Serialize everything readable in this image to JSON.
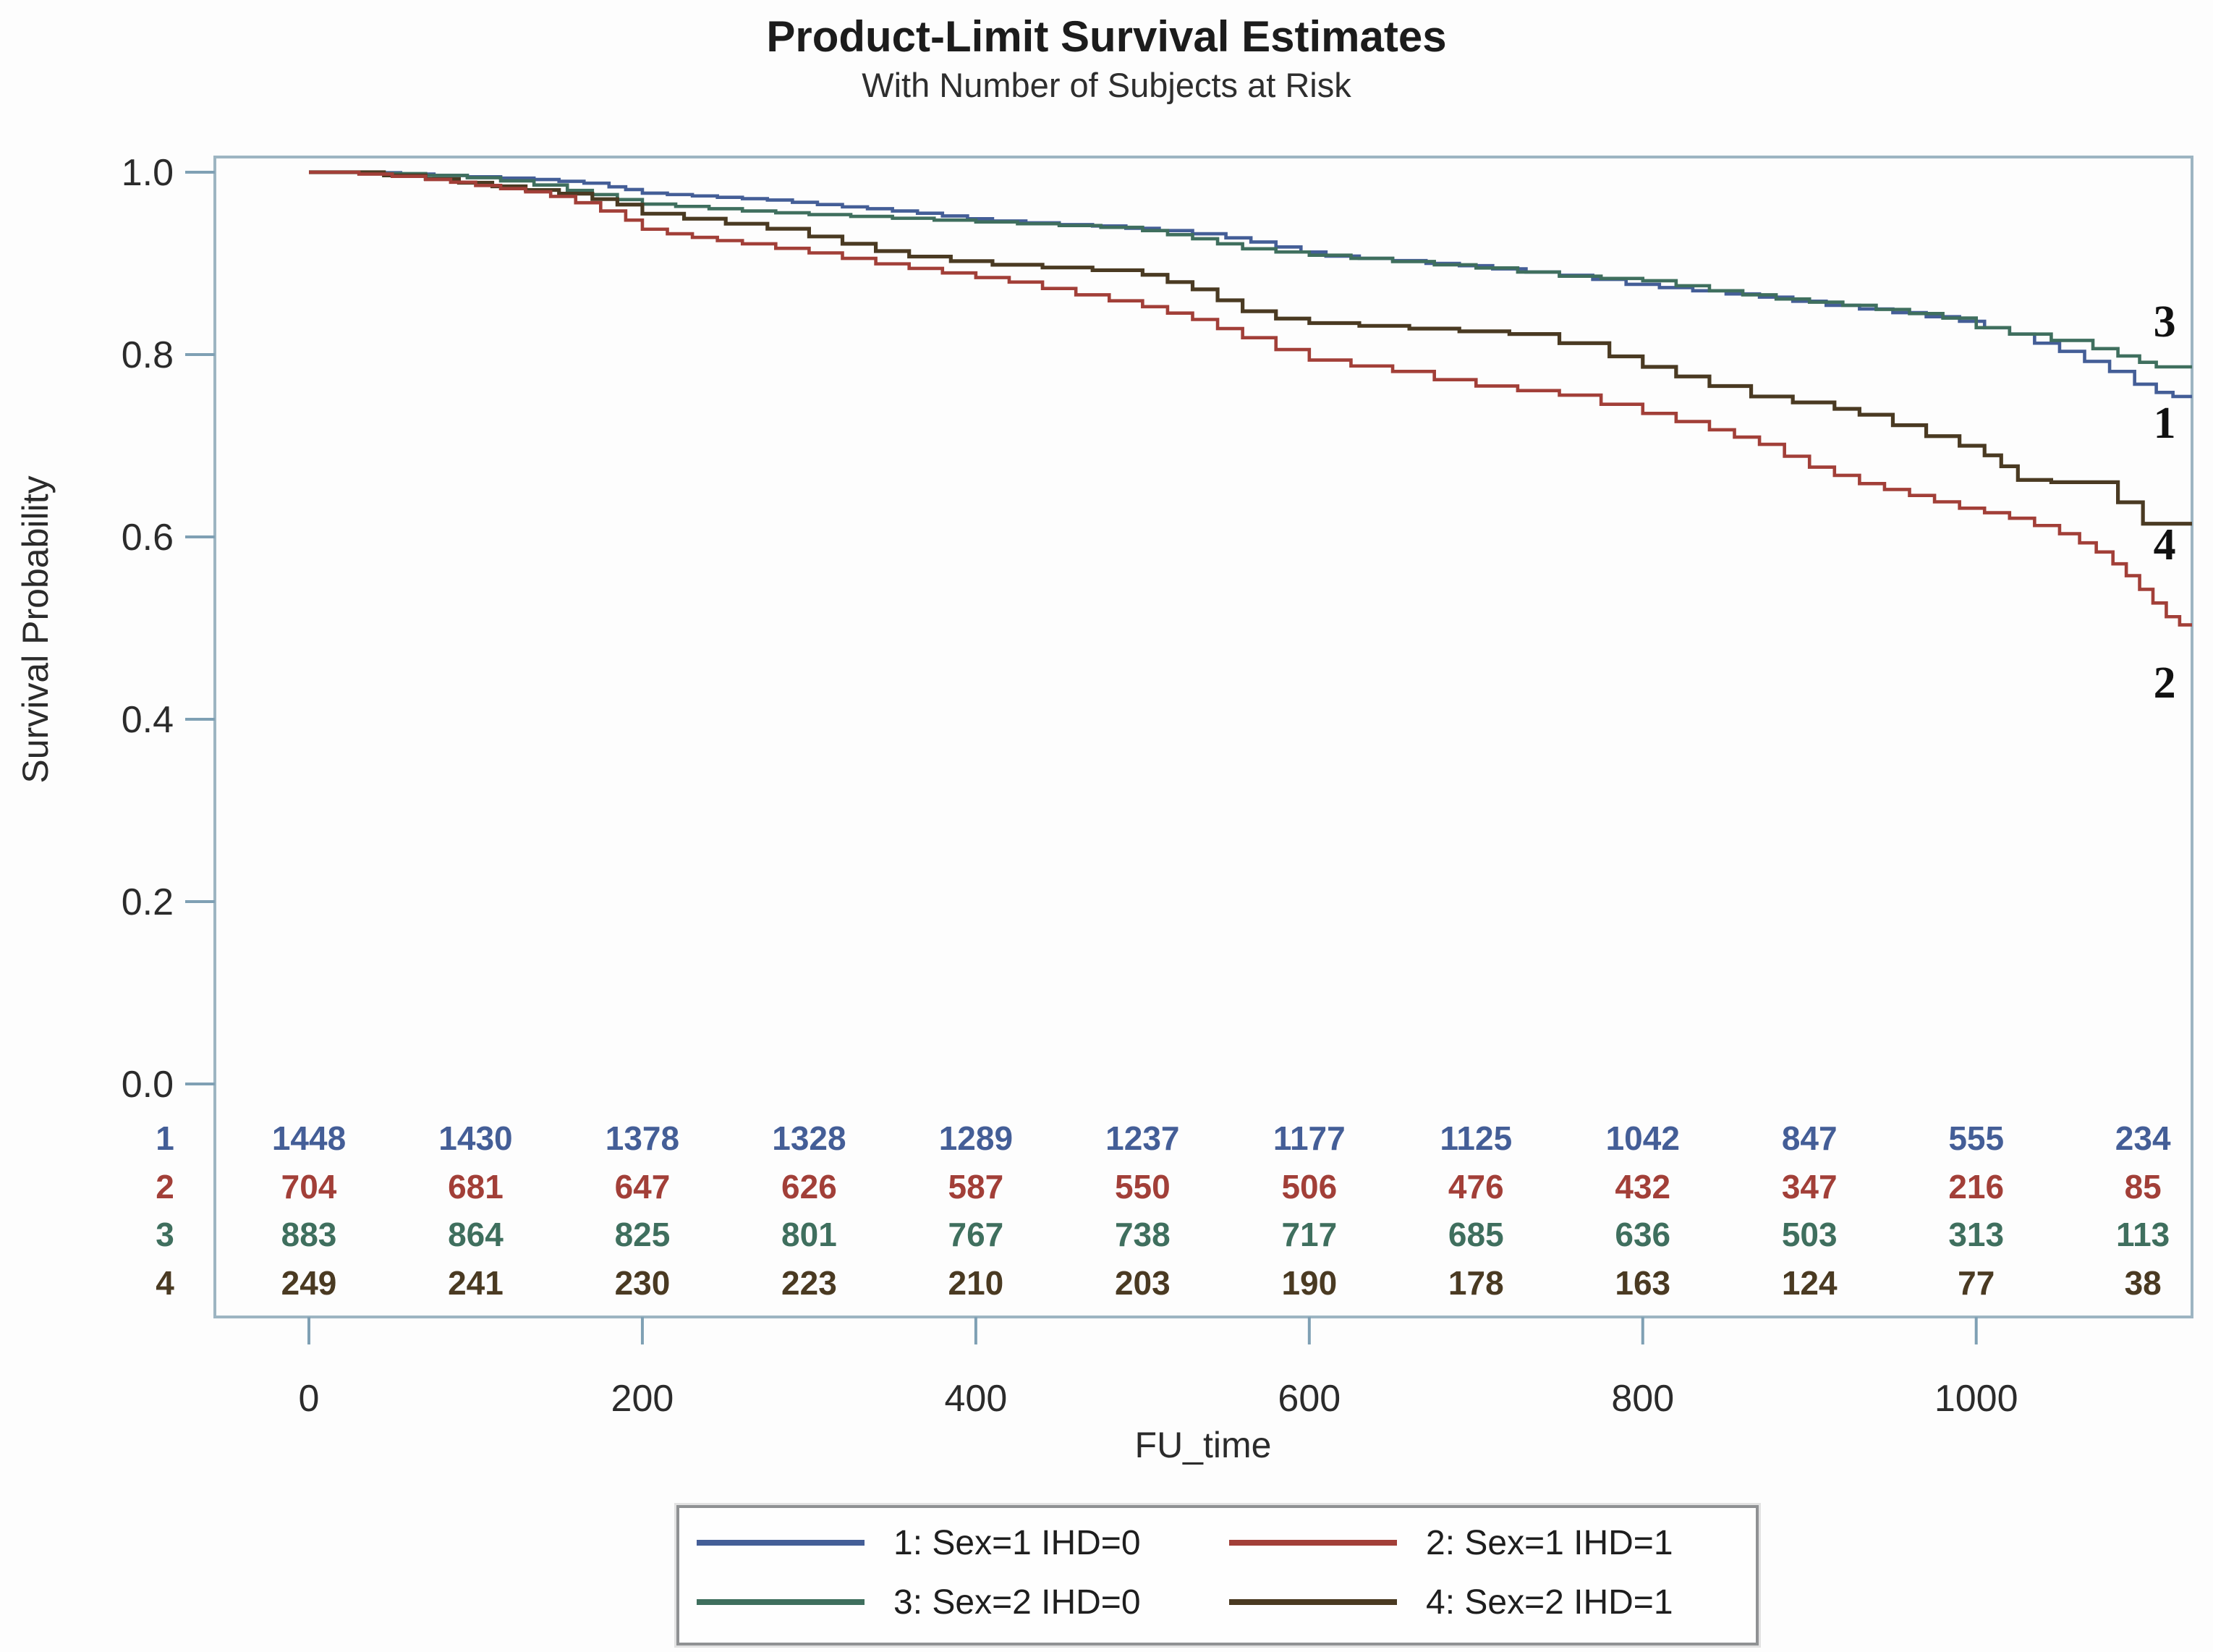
{
  "page": {
    "title": "Product-Limit Survival Estimates",
    "subtitle": "With Number of Subjects at Risk"
  },
  "style": {
    "frame_color": "#9db5c2",
    "tick_color": "#7fa0b4",
    "text_color": "#2b2b2b",
    "end_label_color": "#111111"
  },
  "chart_data": {
    "type": "line",
    "subtype": "kaplan-meier-step",
    "title": "Product-Limit Survival Estimates",
    "subtitle": "With Number of Subjects at Risk",
    "xlabel": "FU_time",
    "ylabel": "Survival Probability",
    "xlim": [
      0,
      1130
    ],
    "ylim": [
      0.0,
      1.0
    ],
    "x_ticks": [
      0,
      200,
      400,
      600,
      800,
      1000
    ],
    "y_ticks": [
      1.0,
      0.8,
      0.6,
      0.4,
      0.2,
      0.0
    ],
    "grid": false,
    "legend_position": "bottom",
    "at_risk_times": [
      0,
      100,
      200,
      300,
      400,
      500,
      600,
      700,
      800,
      900,
      1000,
      1100
    ],
    "series": [
      {
        "id": "1",
        "name": "1: Sex=1 IHD=0",
        "color": "#445e97",
        "stroke_width": 4.6,
        "at_risk": [
          1448,
          1430,
          1378,
          1328,
          1289,
          1237,
          1177,
          1125,
          1042,
          847,
          555,
          234
        ],
        "end_label": {
          "text": "1",
          "t": 1113,
          "s": 0.7246
        },
        "steps": [
          [
            0,
            1
          ],
          [
            35,
            0.9995
          ],
          [
            55,
            0.998
          ],
          [
            75,
            0.9965
          ],
          [
            95,
            0.995
          ],
          [
            115,
            0.9935
          ],
          [
            135,
            0.992
          ],
          [
            150,
            0.99
          ],
          [
            165,
            0.988
          ],
          [
            180,
            0.984
          ],
          [
            190,
            0.981
          ],
          [
            200,
            0.977
          ],
          [
            215,
            0.9755
          ],
          [
            230,
            0.974
          ],
          [
            245,
            0.9725
          ],
          [
            260,
            0.971
          ],
          [
            275,
            0.9695
          ],
          [
            290,
            0.967
          ],
          [
            305,
            0.9645
          ],
          [
            320,
            0.962
          ],
          [
            335,
            0.96
          ],
          [
            350,
            0.9575
          ],
          [
            365,
            0.955
          ],
          [
            380,
            0.952
          ],
          [
            395,
            0.949
          ],
          [
            410,
            0.9465
          ],
          [
            430,
            0.9445
          ],
          [
            450,
            0.9425
          ],
          [
            470,
            0.941
          ],
          [
            490,
            0.9385
          ],
          [
            510,
            0.936
          ],
          [
            530,
            0.9325
          ],
          [
            550,
            0.928
          ],
          [
            565,
            0.9235
          ],
          [
            580,
            0.918
          ],
          [
            595,
            0.9125
          ],
          [
            610,
            0.908
          ],
          [
            630,
            0.9055
          ],
          [
            650,
            0.903
          ],
          [
            670,
            0.9
          ],
          [
            690,
            0.8975
          ],
          [
            710,
            0.894
          ],
          [
            730,
            0.8905
          ],
          [
            750,
            0.887
          ],
          [
            770,
            0.8825
          ],
          [
            790,
            0.877
          ],
          [
            810,
            0.8735
          ],
          [
            830,
            0.87
          ],
          [
            850,
            0.8665
          ],
          [
            870,
            0.863
          ],
          [
            890,
            0.8585
          ],
          [
            910,
            0.854
          ],
          [
            930,
            0.85
          ],
          [
            950,
            0.846
          ],
          [
            970,
            0.8415
          ],
          [
            990,
            0.8365
          ],
          [
            1005,
            0.8295
          ],
          [
            1020,
            0.8225
          ],
          [
            1035,
            0.8125
          ],
          [
            1050,
            0.8035
          ],
          [
            1065,
            0.7925
          ],
          [
            1080,
            0.7815
          ],
          [
            1095,
            0.7675
          ],
          [
            1108,
            0.7585
          ],
          [
            1118,
            0.754
          ],
          [
            1130,
            0.753
          ]
        ]
      },
      {
        "id": "2",
        "name": "2: Sex=1 IHD=1",
        "color": "#a23f38",
        "stroke_width": 4.6,
        "at_risk": [
          704,
          681,
          647,
          626,
          587,
          550,
          506,
          476,
          432,
          347,
          216,
          85
        ],
        "end_label": {
          "text": "2",
          "t": 1113,
          "s": 0.4397
        },
        "steps": [
          [
            0,
            1
          ],
          [
            30,
            0.998
          ],
          [
            50,
            0.9955
          ],
          [
            70,
            0.992
          ],
          [
            85,
            0.989
          ],
          [
            100,
            0.9855
          ],
          [
            115,
            0.982
          ],
          [
            130,
            0.9785
          ],
          [
            145,
            0.9735
          ],
          [
            160,
            0.9665
          ],
          [
            175,
            0.9575
          ],
          [
            190,
            0.9475
          ],
          [
            200,
            0.9375
          ],
          [
            215,
            0.9325
          ],
          [
            230,
            0.9285
          ],
          [
            245,
            0.925
          ],
          [
            260,
            0.9215
          ],
          [
            280,
            0.9165
          ],
          [
            300,
            0.9115
          ],
          [
            320,
            0.9055
          ],
          [
            340,
            0.8995
          ],
          [
            360,
            0.8945
          ],
          [
            380,
            0.8895
          ],
          [
            400,
            0.8845
          ],
          [
            420,
            0.8795
          ],
          [
            440,
            0.8725
          ],
          [
            460,
            0.8655
          ],
          [
            480,
            0.859
          ],
          [
            500,
            0.8525
          ],
          [
            515,
            0.8455
          ],
          [
            530,
            0.8385
          ],
          [
            545,
            0.8285
          ],
          [
            560,
            0.8185
          ],
          [
            580,
            0.8055
          ],
          [
            600,
            0.794
          ],
          [
            625,
            0.7875
          ],
          [
            650,
            0.7815
          ],
          [
            675,
            0.7725
          ],
          [
            700,
            0.7655
          ],
          [
            725,
            0.7605
          ],
          [
            750,
            0.7555
          ],
          [
            775,
            0.7455
          ],
          [
            800,
            0.7355
          ],
          [
            820,
            0.7265
          ],
          [
            840,
            0.7175
          ],
          [
            855,
            0.7095
          ],
          [
            870,
            0.7015
          ],
          [
            885,
            0.6885
          ],
          [
            900,
            0.6765
          ],
          [
            915,
            0.6675
          ],
          [
            930,
            0.6585
          ],
          [
            945,
            0.652
          ],
          [
            960,
            0.6455
          ],
          [
            975,
            0.6385
          ],
          [
            990,
            0.6315
          ],
          [
            1005,
            0.6265
          ],
          [
            1020,
            0.6205
          ],
          [
            1035,
            0.6125
          ],
          [
            1050,
            0.6035
          ],
          [
            1062,
            0.5935
          ],
          [
            1072,
            0.5835
          ],
          [
            1082,
            0.5705
          ],
          [
            1090,
            0.5575
          ],
          [
            1098,
            0.5425
          ],
          [
            1106,
            0.5275
          ],
          [
            1114,
            0.5125
          ],
          [
            1122,
            0.5035
          ],
          [
            1130,
            0.5025
          ]
        ]
      },
      {
        "id": "3",
        "name": "3: Sex=2 IHD=0",
        "color": "#3f6f5e",
        "stroke_width": 4.6,
        "at_risk": [
          883,
          864,
          825,
          801,
          767,
          738,
          717,
          685,
          636,
          503,
          313,
          113
        ],
        "end_label": {
          "text": "3",
          "t": 1113,
          "s": 0.8357
        },
        "steps": [
          [
            0,
            1
          ],
          [
            45,
            0.9985
          ],
          [
            70,
            0.9965
          ],
          [
            95,
            0.994
          ],
          [
            115,
            0.9905
          ],
          [
            135,
            0.986
          ],
          [
            155,
            0.98
          ],
          [
            170,
            0.9755
          ],
          [
            185,
            0.97
          ],
          [
            200,
            0.965
          ],
          [
            220,
            0.9625
          ],
          [
            240,
            0.96
          ],
          [
            260,
            0.9575
          ],
          [
            280,
            0.9555
          ],
          [
            300,
            0.9535
          ],
          [
            325,
            0.9515
          ],
          [
            350,
            0.9495
          ],
          [
            375,
            0.9475
          ],
          [
            400,
            0.9455
          ],
          [
            425,
            0.9435
          ],
          [
            450,
            0.9415
          ],
          [
            475,
            0.9395
          ],
          [
            500,
            0.936
          ],
          [
            515,
            0.9315
          ],
          [
            530,
            0.927
          ],
          [
            545,
            0.9215
          ],
          [
            560,
            0.916
          ],
          [
            580,
            0.9125
          ],
          [
            600,
            0.909
          ],
          [
            625,
            0.9055
          ],
          [
            650,
            0.902
          ],
          [
            675,
            0.8985
          ],
          [
            700,
            0.895
          ],
          [
            725,
            0.8905
          ],
          [
            750,
            0.886
          ],
          [
            775,
            0.8835
          ],
          [
            800,
            0.881
          ],
          [
            820,
            0.8755
          ],
          [
            840,
            0.87
          ],
          [
            860,
            0.8655
          ],
          [
            880,
            0.861
          ],
          [
            900,
            0.8575
          ],
          [
            920,
            0.854
          ],
          [
            940,
            0.8495
          ],
          [
            960,
            0.845
          ],
          [
            980,
            0.84
          ],
          [
            1000,
            0.8295
          ],
          [
            1020,
            0.8225
          ],
          [
            1045,
            0.8155
          ],
          [
            1070,
            0.8065
          ],
          [
            1085,
            0.7985
          ],
          [
            1098,
            0.7915
          ],
          [
            1108,
            0.7865
          ],
          [
            1130,
            0.785
          ]
        ]
      },
      {
        "id": "4",
        "name": "4: Sex=2 IHD=1",
        "color": "#4a3a22",
        "stroke_width": 5.2,
        "at_risk": [
          249,
          241,
          230,
          223,
          210,
          203,
          190,
          178,
          163,
          124,
          77,
          38
        ],
        "end_label": {
          "text": "4",
          "t": 1113,
          "s": 0.5913
        },
        "steps": [
          [
            0,
            1
          ],
          [
            45,
            0.9965
          ],
          [
            70,
            0.9925
          ],
          [
            90,
            0.9885
          ],
          [
            110,
            0.9845
          ],
          [
            130,
            0.9805
          ],
          [
            150,
            0.9765
          ],
          [
            170,
            0.9705
          ],
          [
            185,
            0.9645
          ],
          [
            200,
            0.9545
          ],
          [
            225,
            0.949
          ],
          [
            250,
            0.9435
          ],
          [
            275,
            0.938
          ],
          [
            300,
            0.9295
          ],
          [
            320,
            0.9215
          ],
          [
            340,
            0.9135
          ],
          [
            360,
            0.9075
          ],
          [
            385,
            0.9025
          ],
          [
            410,
            0.8985
          ],
          [
            440,
            0.8955
          ],
          [
            470,
            0.8925
          ],
          [
            500,
            0.8875
          ],
          [
            515,
            0.8795
          ],
          [
            530,
            0.8715
          ],
          [
            545,
            0.8595
          ],
          [
            560,
            0.8475
          ],
          [
            580,
            0.8395
          ],
          [
            600,
            0.8345
          ],
          [
            630,
            0.8315
          ],
          [
            660,
            0.8285
          ],
          [
            690,
            0.8255
          ],
          [
            720,
            0.8225
          ],
          [
            750,
            0.8125
          ],
          [
            780,
            0.798
          ],
          [
            800,
            0.7865
          ],
          [
            820,
            0.776
          ],
          [
            840,
            0.7655
          ],
          [
            865,
            0.754
          ],
          [
            890,
            0.7475
          ],
          [
            915,
            0.7405
          ],
          [
            930,
            0.734
          ],
          [
            950,
            0.7225
          ],
          [
            970,
            0.7105
          ],
          [
            990,
            0.7
          ],
          [
            1005,
            0.6895
          ],
          [
            1015,
            0.6775
          ],
          [
            1025,
            0.6625
          ],
          [
            1045,
            0.66
          ],
          [
            1085,
            0.638
          ],
          [
            1100,
            0.6145
          ],
          [
            1130,
            0.614
          ]
        ]
      }
    ]
  },
  "legend": {
    "rows": [
      [
        "0",
        "1"
      ],
      [
        "2",
        "3"
      ]
    ]
  }
}
